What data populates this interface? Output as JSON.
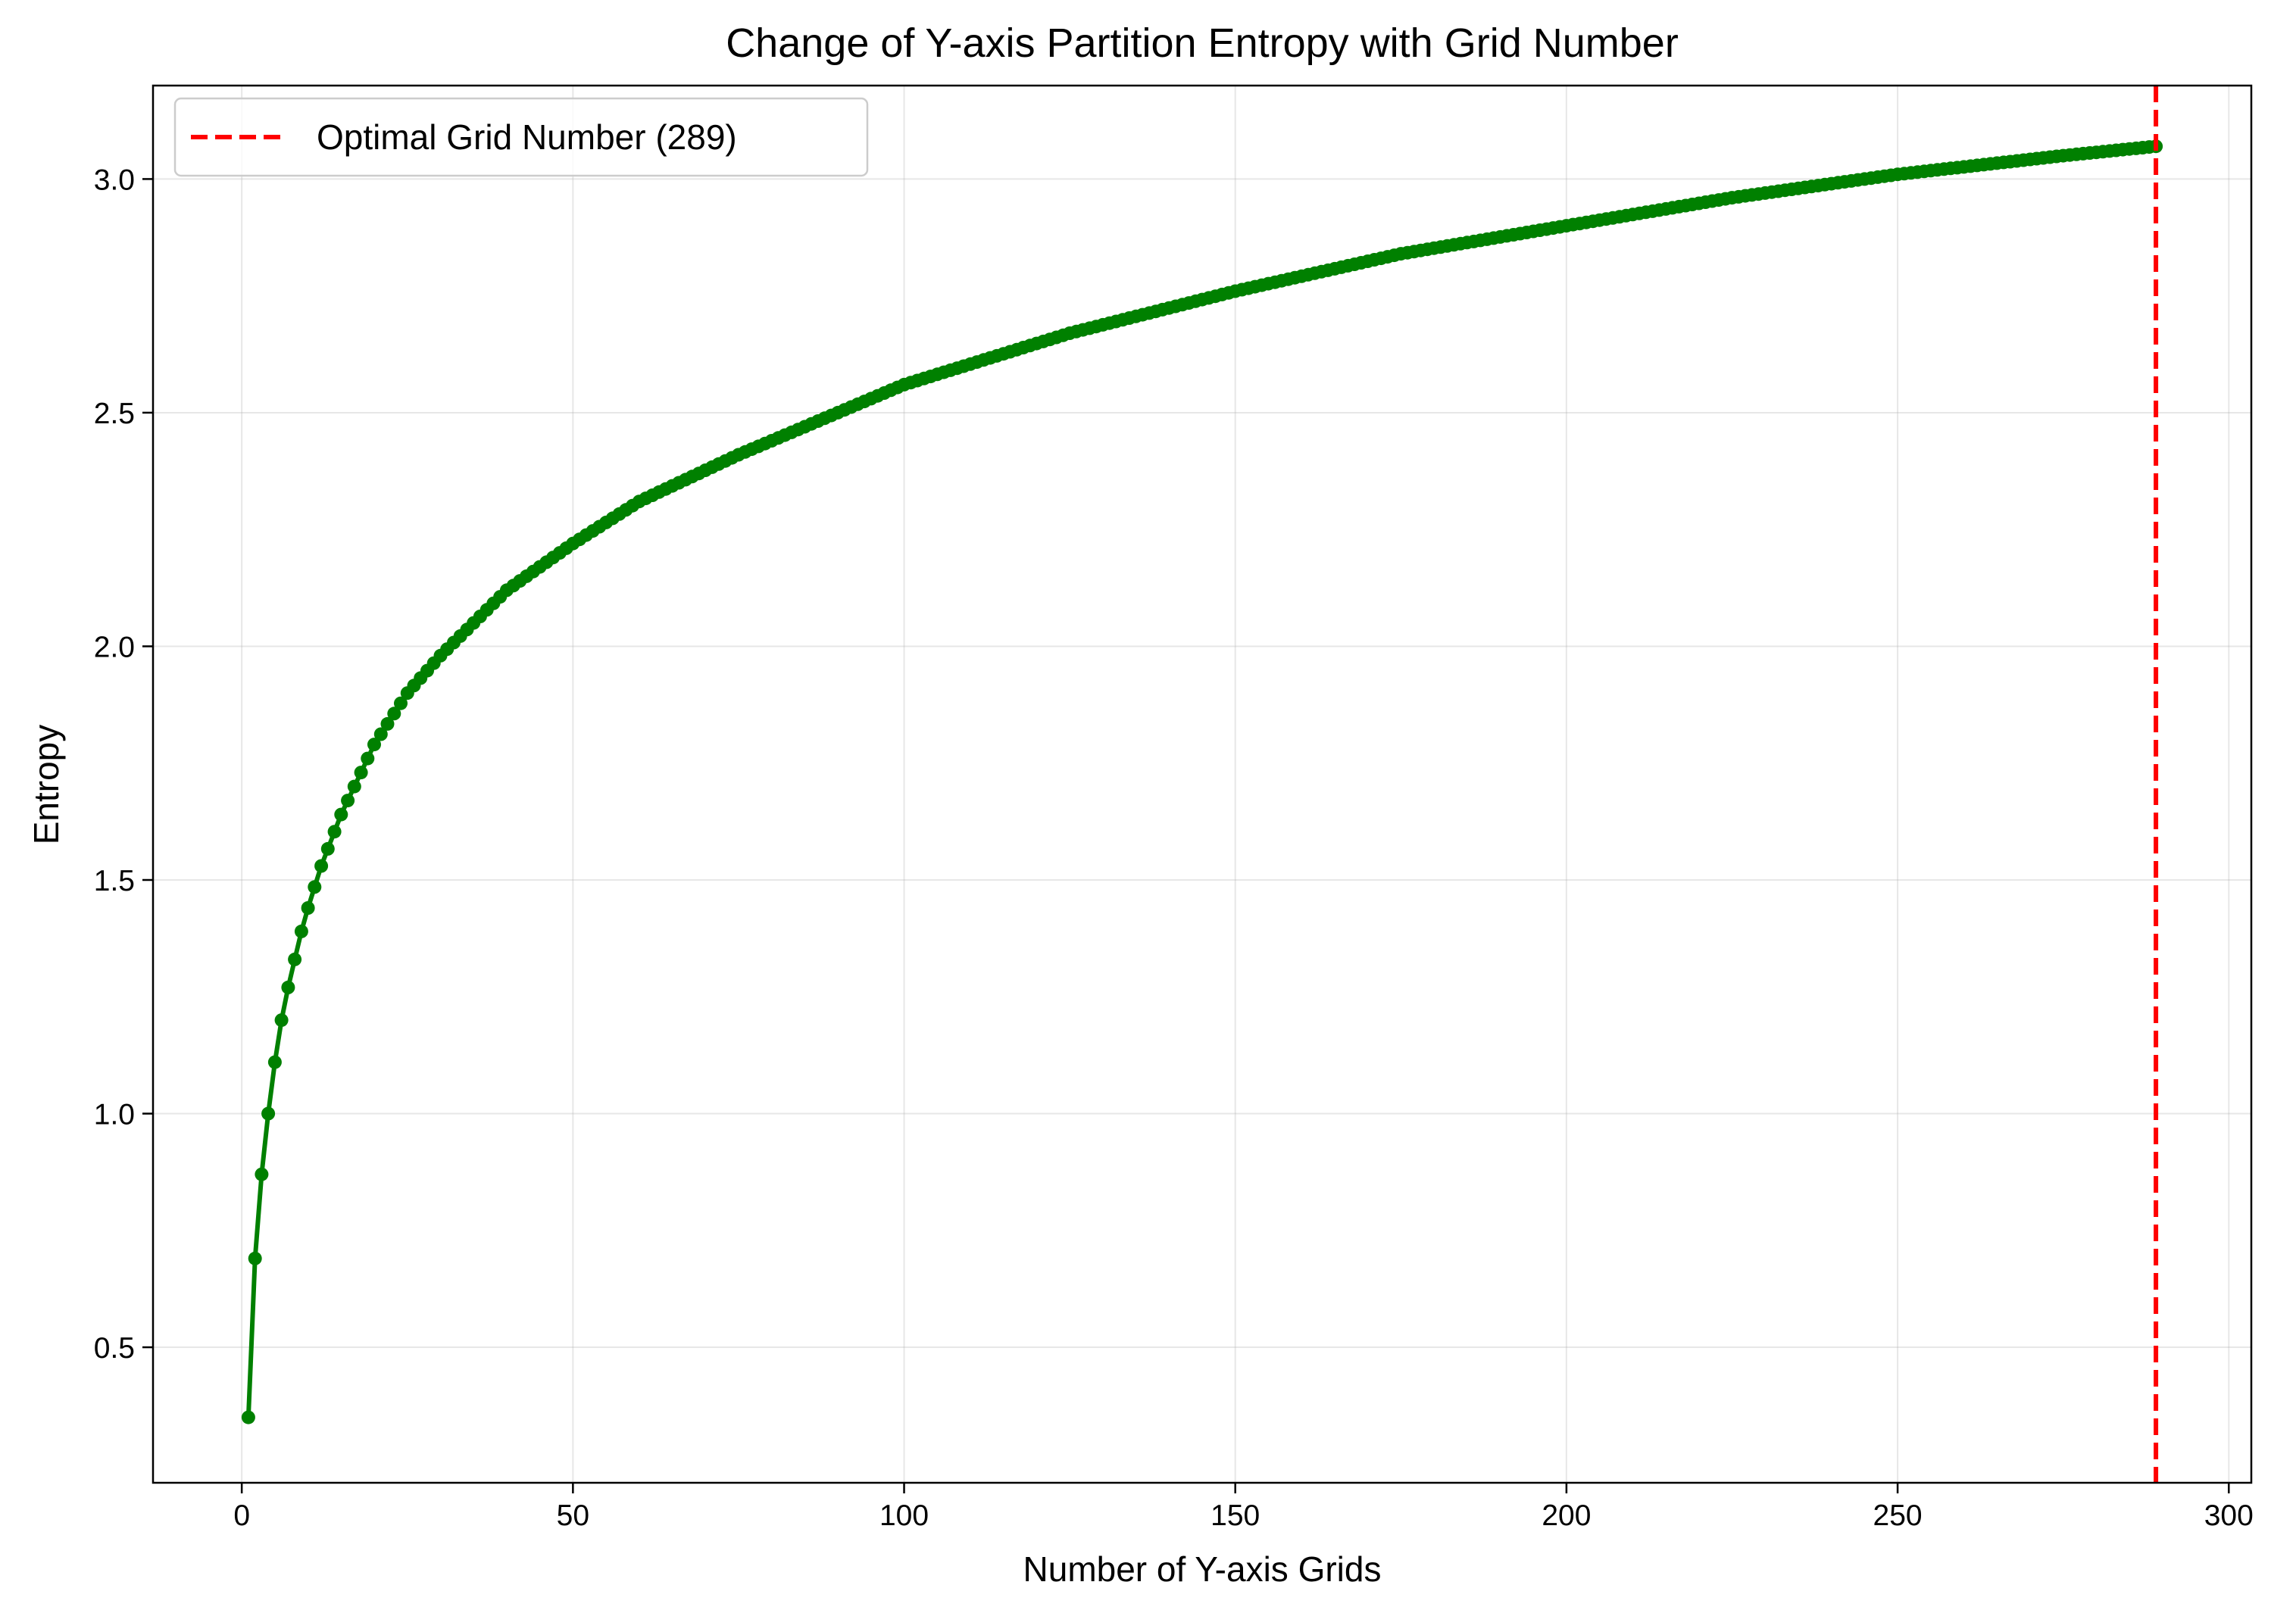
{
  "chart_data": {
    "type": "line",
    "title": "Change of Y-axis Partition Entropy with Grid Number",
    "xlabel": "Number of Y-axis Grids",
    "ylabel": "Entropy",
    "xlim": [
      -13.4,
      303.4
    ],
    "ylim": [
      0.21,
      3.2
    ],
    "xticks": [
      0,
      50,
      100,
      150,
      200,
      250,
      300
    ],
    "xtick_labels": [
      "0",
      "50",
      "100",
      "150",
      "200",
      "250",
      "300"
    ],
    "yticks": [
      0.5,
      1.0,
      1.5,
      2.0,
      2.5,
      3.0
    ],
    "ytick_labels": [
      "0.5",
      "1.0",
      "1.5",
      "2.0",
      "2.5",
      "3.0"
    ],
    "grid": true,
    "legend_position": "top-left",
    "series": [
      {
        "name": "",
        "color": "#008000",
        "marker": "circle",
        "x_start": 1,
        "x_end": 289,
        "x_step": 1,
        "key_points": [
          [
            1,
            0.35
          ],
          [
            2,
            0.69
          ],
          [
            3,
            0.87
          ],
          [
            4,
            1.0
          ],
          [
            5,
            1.11
          ],
          [
            6,
            1.2
          ],
          [
            7,
            1.27
          ],
          [
            8,
            1.33
          ],
          [
            9,
            1.39
          ],
          [
            10,
            1.44
          ],
          [
            12,
            1.53
          ],
          [
            15,
            1.64
          ],
          [
            20,
            1.79
          ],
          [
            25,
            1.9
          ],
          [
            30,
            1.98
          ],
          [
            40,
            2.12
          ],
          [
            50,
            2.22
          ],
          [
            60,
            2.31
          ],
          [
            75,
            2.41
          ],
          [
            100,
            2.56
          ],
          [
            125,
            2.67
          ],
          [
            150,
            2.76
          ],
          [
            175,
            2.84
          ],
          [
            200,
            2.9
          ],
          [
            225,
            2.96
          ],
          [
            250,
            3.01
          ],
          [
            275,
            3.05
          ],
          [
            289,
            3.07
          ]
        ]
      }
    ],
    "vlines": [
      {
        "x": 289,
        "name": "Optimal Grid Number (289)",
        "color": "#ff0000",
        "style": "dashed"
      }
    ]
  }
}
